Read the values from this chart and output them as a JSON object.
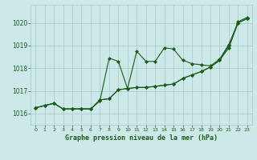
{
  "background_color": "#cce8e8",
  "grid_color": "#aac8c8",
  "line_color": "#1a5c1a",
  "xlabel": "Graphe pression niveau de la mer (hPa)",
  "xlim": [
    -0.5,
    23.5
  ],
  "ylim": [
    1015.5,
    1020.8
  ],
  "yticks": [
    1016,
    1017,
    1018,
    1019,
    1020
  ],
  "xticks": [
    0,
    1,
    2,
    3,
    4,
    5,
    6,
    7,
    8,
    9,
    10,
    11,
    12,
    13,
    14,
    15,
    16,
    17,
    18,
    19,
    20,
    21,
    22,
    23
  ],
  "series": [
    [
      1016.25,
      1016.35,
      1016.45,
      1016.2,
      1016.2,
      1016.2,
      1016.2,
      1016.55,
      1018.45,
      1018.3,
      1017.1,
      1018.75,
      1018.3,
      1018.3,
      1018.9,
      1018.85,
      1018.35,
      1018.2,
      1018.15,
      1018.1,
      1018.4,
      1019.05,
      1020.0,
      1020.2
    ],
    [
      1016.25,
      1016.35,
      1016.45,
      1016.2,
      1016.2,
      1016.2,
      1016.2,
      1016.6,
      1016.65,
      1017.05,
      1017.1,
      1017.15,
      1017.15,
      1017.2,
      1017.25,
      1017.3,
      1017.55,
      1017.7,
      1017.85,
      1018.05,
      1018.35,
      1018.9,
      1020.0,
      1020.2
    ],
    [
      1016.25,
      1016.35,
      1016.45,
      1016.2,
      1016.2,
      1016.2,
      1016.2,
      1016.6,
      1016.65,
      1017.05,
      1017.1,
      1017.15,
      1017.15,
      1017.2,
      1017.25,
      1017.3,
      1017.55,
      1017.7,
      1017.85,
      1018.05,
      1018.35,
      1019.0,
      1020.05,
      1020.25
    ]
  ]
}
